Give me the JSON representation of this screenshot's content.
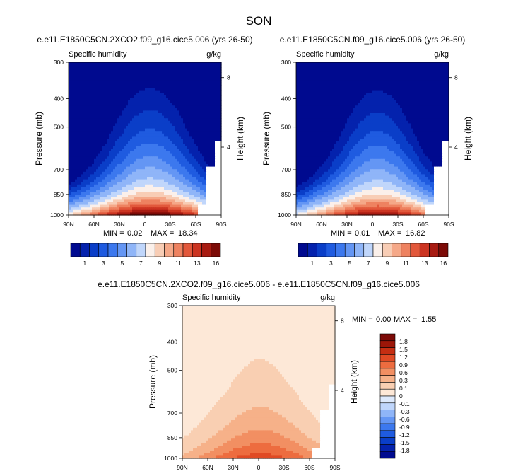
{
  "page": {
    "season": "SON"
  },
  "palettes": {
    "abs": [
      "#000a8f",
      "#0422ad",
      "#0a3ec8",
      "#1f5be0",
      "#3c78ee",
      "#6496f4",
      "#8fb5f8",
      "#c0d6fb",
      "#fbf0ea",
      "#f8cdb5",
      "#f5a888",
      "#ee8260",
      "#e2583b",
      "#cc3421",
      "#a81b12",
      "#7c0a07"
    ],
    "diff": [
      "#000a8f",
      "#0422ad",
      "#0a3ec8",
      "#1f5be0",
      "#3c78ee",
      "#6496f4",
      "#8fb5f8",
      "#c0d6fb",
      "#dde9fc",
      "#fde8d7",
      "#f9cfb2",
      "#f6b189",
      "#f28f62",
      "#ed6c3f",
      "#e04a24",
      "#c52e12",
      "#9c1608",
      "#7c0a07"
    ]
  },
  "chart_data": [
    {
      "id": "left",
      "type": "heatmap",
      "title": "e.e11.E1850C5CN.2XCO2.f09_g16.cice5.006 (yrs 26-50)",
      "left_label": "Specific humidity",
      "right_label": "g/kg",
      "xlabel": "",
      "ylabel": "Pressure (mb)",
      "y2label": "Height (km)",
      "x_ticks": [
        "90N",
        "60N",
        "30N",
        "0",
        "30S",
        "60S",
        "90S"
      ],
      "y_ticks": [
        "300",
        "400",
        "500",
        "700",
        "850",
        "1000"
      ],
      "y_tick_values": [
        300,
        400,
        500,
        700,
        850,
        1000
      ],
      "height_ticks": [
        "8",
        "4"
      ],
      "height_tick_values": [
        8,
        4
      ],
      "min_label": "MIN =",
      "min": "0.02",
      "max_label": "MAX =",
      "max": "18.34",
      "colorbar_labels": [
        "1",
        "3",
        "5",
        "7",
        "9",
        "11",
        "13",
        "16"
      ],
      "peak": 18.34,
      "center_lat": -6,
      "width_scale": 1.0
    },
    {
      "id": "right",
      "type": "heatmap",
      "title": "e.e11.E1850C5CN.f09_g16.cice5.006 (yrs 26-50)",
      "left_label": "Specific humidity",
      "right_label": "g/kg",
      "xlabel": "",
      "ylabel": "Pressure (mb)",
      "y2label": "Height (km)",
      "x_ticks": [
        "90N",
        "60N",
        "30N",
        "0",
        "30S",
        "60S",
        "90S"
      ],
      "y_ticks": [
        "300",
        "400",
        "500",
        "700",
        "850",
        "1000"
      ],
      "y_tick_values": [
        300,
        400,
        500,
        700,
        850,
        1000
      ],
      "height_ticks": [
        "8",
        "4"
      ],
      "height_tick_values": [
        8,
        4
      ],
      "min_label": "MIN =",
      "min": "0.01",
      "max_label": "MAX =",
      "max": "16.82",
      "colorbar_labels": [
        "1",
        "3",
        "5",
        "7",
        "9",
        "11",
        "13",
        "16"
      ],
      "peak": 16.82,
      "center_lat": -6,
      "width_scale": 0.95
    },
    {
      "id": "diff",
      "type": "heatmap",
      "title": "e.e11.E1850C5CN.2XCO2.f09_g16.cice5.006 - e.e11.E1850C5CN.f09_g16.cice5.006",
      "left_label": "Specific humidity",
      "right_label": "g/kg",
      "xlabel": "",
      "ylabel": "Pressure (mb)",
      "y2label": "Height (km)",
      "x_ticks": [
        "90N",
        "60N",
        "30N",
        "0",
        "30S",
        "60S",
        "90S"
      ],
      "y_ticks": [
        "300",
        "400",
        "500",
        "700",
        "850",
        "1000"
      ],
      "y_tick_values": [
        300,
        400,
        500,
        700,
        850,
        1000
      ],
      "height_ticks": [
        "8",
        "4"
      ],
      "height_tick_values": [
        8,
        4
      ],
      "min_label": "MIN =",
      "min": "0.00",
      "max_label": "MAX =",
      "max": "1.55",
      "colorbar_labels": [
        "1.8",
        "1.5",
        "1.2",
        "0.9",
        "0.6",
        "0.3",
        "0.1",
        "0",
        "-0.1",
        "-0.3",
        "-0.6",
        "-0.9",
        "-1.2",
        "-1.5",
        "-1.8"
      ]
    }
  ]
}
